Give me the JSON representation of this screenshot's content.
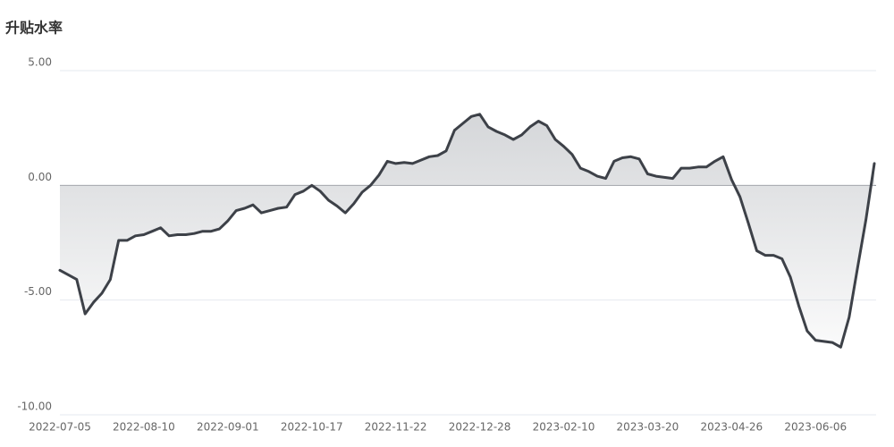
{
  "chart_data": {
    "type": "area",
    "title": "升贴水率",
    "categories": [
      "2022-07-05",
      null,
      null,
      null,
      null,
      null,
      null,
      null,
      null,
      null,
      "2022-08-10",
      null,
      null,
      null,
      null,
      null,
      null,
      null,
      null,
      null,
      "2022-09-01",
      null,
      null,
      null,
      null,
      null,
      null,
      null,
      null,
      null,
      "2022-10-17",
      null,
      null,
      null,
      null,
      null,
      null,
      null,
      null,
      null,
      "2022-11-22",
      null,
      null,
      null,
      null,
      null,
      null,
      null,
      null,
      null,
      "2022-12-28",
      null,
      null,
      null,
      null,
      null,
      null,
      null,
      null,
      null,
      "2023-02-10",
      null,
      null,
      null,
      null,
      null,
      null,
      null,
      null,
      null,
      "2023-03-20",
      null,
      null,
      null,
      null,
      null,
      null,
      null,
      null,
      null,
      "2023-04-26",
      null,
      null,
      null,
      null,
      null,
      null,
      null,
      null,
      null,
      "2023-06-06",
      null,
      null,
      null,
      null,
      null,
      null,
      null
    ],
    "values": [
      -3.7,
      -3.9,
      -4.1,
      -5.6,
      -5.1,
      -4.7,
      -4.1,
      -2.4,
      -2.4,
      -2.2,
      -2.15,
      -2.0,
      -1.85,
      -2.2,
      -2.15,
      -2.15,
      -2.1,
      -2.0,
      -2.0,
      -1.9,
      -1.55,
      -1.1,
      -1.0,
      -0.85,
      -1.2,
      -1.1,
      -1.0,
      -0.95,
      -0.4,
      -0.25,
      0.0,
      -0.25,
      -0.65,
      -0.9,
      -1.2,
      -0.8,
      -0.3,
      0.0,
      0.45,
      1.05,
      0.95,
      1.0,
      0.95,
      1.1,
      1.25,
      1.3,
      1.5,
      2.4,
      2.7,
      3.0,
      3.1,
      2.55,
      2.35,
      2.2,
      2.0,
      2.2,
      2.55,
      2.8,
      2.6,
      2.0,
      1.7,
      1.35,
      0.75,
      0.6,
      0.4,
      0.3,
      1.05,
      1.2,
      1.25,
      1.15,
      0.5,
      0.4,
      0.35,
      0.3,
      0.75,
      0.75,
      0.8,
      0.8,
      1.05,
      1.25,
      0.25,
      -0.5,
      -1.65,
      -2.85,
      -3.05,
      -3.05,
      -3.2,
      -4.0,
      -5.25,
      -6.35,
      -6.75,
      -6.8,
      -6.85,
      -7.05,
      -5.75,
      -3.6,
      -1.5,
      0.95
    ],
    "color": "#3d4148",
    "fill_color": "#d0d2d5",
    "zero_line_color": "#8a8e96",
    "ylim": [
      -10,
      5
    ],
    "yticks": [
      {
        "value": -10,
        "label": "-10.00"
      },
      {
        "value": -5,
        "label": "-5.00"
      },
      {
        "value": 0,
        "label": "0.00"
      },
      {
        "value": 5,
        "label": "5.00"
      }
    ],
    "grid": true
  }
}
